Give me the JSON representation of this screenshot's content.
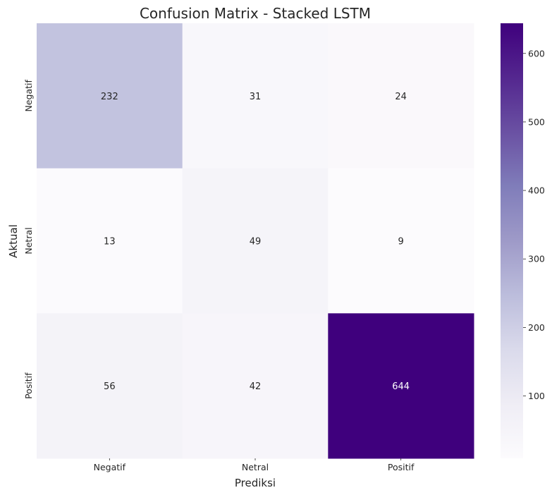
{
  "chart_data": {
    "type": "heatmap",
    "title": "Confusion Matrix - Stacked LSTM",
    "xlabel": "Prediksi",
    "ylabel": "Aktual",
    "x_categories": [
      "Negatif",
      "Netral",
      "Positif"
    ],
    "y_categories": [
      "Negatif",
      "Netral",
      "Positif"
    ],
    "values": [
      [
        232,
        31,
        24
      ],
      [
        13,
        49,
        9
      ],
      [
        56,
        42,
        644
      ]
    ],
    "colormap": "Purples",
    "colorbar": {
      "range": [
        9,
        644
      ],
      "ticks": [
        100,
        200,
        300,
        400,
        500,
        600
      ]
    },
    "colors": {
      "low": "#fcfbfd",
      "high": "#3f007d",
      "text_dark": "#262626",
      "text_light": "#ffffff"
    }
  }
}
